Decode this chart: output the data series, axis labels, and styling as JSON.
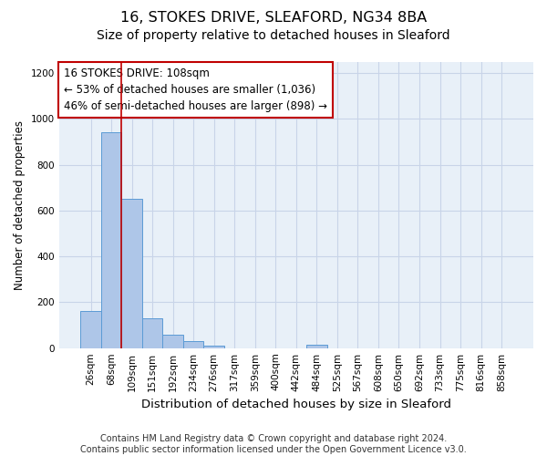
{
  "title1": "16, STOKES DRIVE, SLEAFORD, NG34 8BA",
  "title2": "Size of property relative to detached houses in Sleaford",
  "xlabel": "Distribution of detached houses by size in Sleaford",
  "ylabel": "Number of detached properties",
  "bar_labels": [
    "26sqm",
    "68sqm",
    "109sqm",
    "151sqm",
    "192sqm",
    "234sqm",
    "276sqm",
    "317sqm",
    "359sqm",
    "400sqm",
    "442sqm",
    "484sqm",
    "525sqm",
    "567sqm",
    "608sqm",
    "650sqm",
    "692sqm",
    "733sqm",
    "775sqm",
    "816sqm",
    "858sqm"
  ],
  "bar_values": [
    160,
    940,
    650,
    130,
    60,
    30,
    10,
    0,
    0,
    0,
    0,
    15,
    0,
    0,
    0,
    0,
    0,
    0,
    0,
    0,
    0
  ],
  "bar_color": "#aec6e8",
  "bar_edge_color": "#5b9bd5",
  "vline_x": 1.5,
  "vline_color": "#c00000",
  "annotation_line1": "16 STOKES DRIVE: 108sqm",
  "annotation_line2": "← 53% of detached houses are smaller (1,036)",
  "annotation_line3": "46% of semi-detached houses are larger (898) →",
  "annotation_box_color": "#ffffff",
  "annotation_box_edge": "#c00000",
  "ylim": [
    0,
    1250
  ],
  "yticks": [
    0,
    200,
    400,
    600,
    800,
    1000,
    1200
  ],
  "grid_color": "#c8d4e8",
  "bg_color": "#e8f0f8",
  "fig_bg_color": "#ffffff",
  "footer": "Contains HM Land Registry data © Crown copyright and database right 2024.\nContains public sector information licensed under the Open Government Licence v3.0.",
  "title1_fontsize": 11.5,
  "title2_fontsize": 10,
  "xlabel_fontsize": 9.5,
  "ylabel_fontsize": 8.5,
  "tick_fontsize": 7.5,
  "annotation_fontsize": 8.5,
  "footer_fontsize": 7
}
